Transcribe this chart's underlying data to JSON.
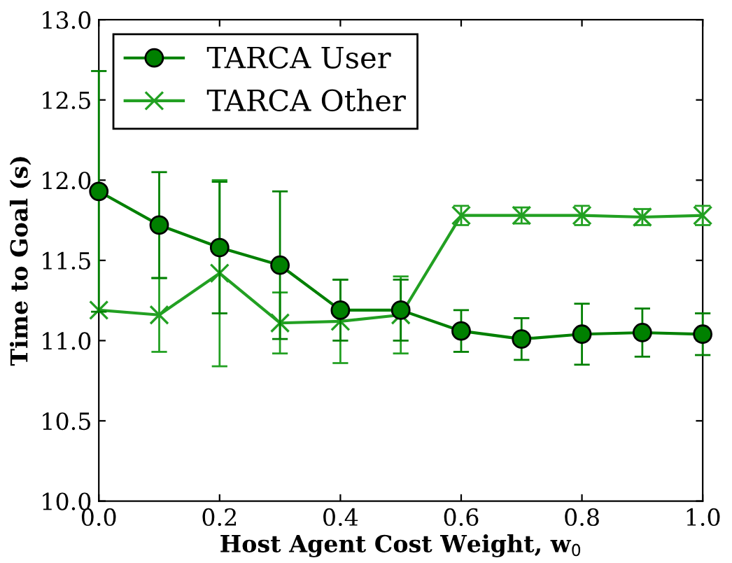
{
  "chart_data": {
    "type": "line",
    "xlabel": "Host Agent Cost Weight, w$_{0}$",
    "ylabel": "Time to Goal (s)",
    "x": [
      0.0,
      0.1,
      0.2,
      0.3,
      0.4,
      0.5,
      0.6,
      0.7,
      0.8,
      0.9,
      1.0
    ],
    "series": [
      {
        "name": "TARCA User",
        "color": "#008000",
        "marker": "circle",
        "values": [
          11.93,
          11.72,
          11.58,
          11.47,
          11.19,
          11.19,
          11.06,
          11.01,
          11.04,
          11.05,
          11.04
        ],
        "errors": [
          0.75,
          0.33,
          0.41,
          0.46,
          0.19,
          0.19,
          0.13,
          0.13,
          0.19,
          0.15,
          0.13
        ]
      },
      {
        "name": "TARCA Other",
        "color": "#22a022",
        "marker": "cross",
        "values": [
          11.19,
          11.16,
          11.42,
          11.11,
          11.12,
          11.16,
          11.78,
          11.78,
          11.78,
          11.77,
          11.78
        ],
        "errors": [
          null,
          0.23,
          0.58,
          0.19,
          0.26,
          0.24,
          0.06,
          0.05,
          0.06,
          0.05,
          0.06
        ]
      }
    ],
    "xlim": [
      0.0,
      1.0
    ],
    "ylim": [
      10.0,
      13.0
    ],
    "xticks": [
      {
        "value": 0,
        "label": "0.0"
      },
      0.2,
      0.4,
      0.6,
      0.8,
      {
        "value": 1,
        "label": "1.0"
      }
    ],
    "yticks": [
      {
        "value": 10,
        "label": "10.0"
      },
      10.5,
      {
        "value": 11,
        "label": "11.0"
      },
      11.5,
      {
        "value": 12,
        "label": "12.0"
      },
      12.5,
      {
        "value": 13,
        "label": "13.0"
      }
    ],
    "grid": false,
    "legend": "top left"
  }
}
